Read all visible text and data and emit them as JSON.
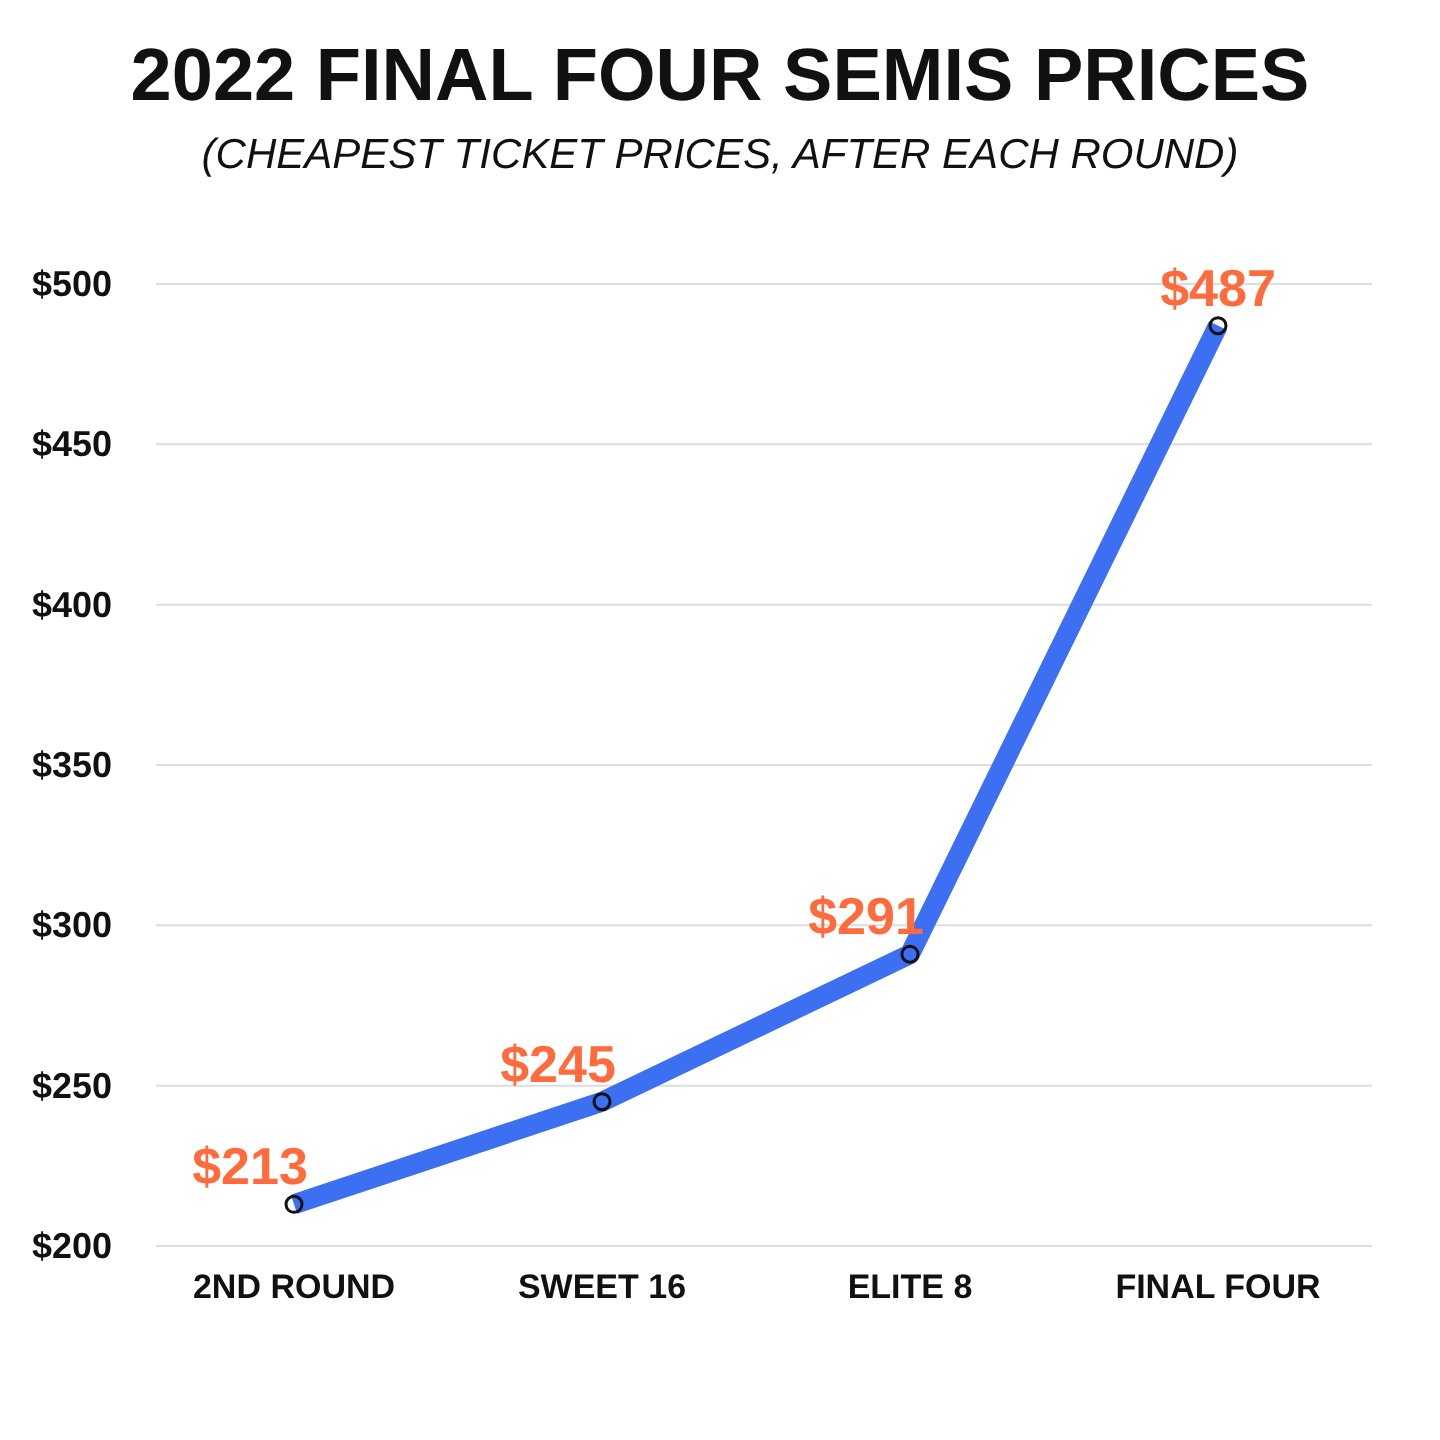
{
  "chart_data": {
    "type": "line",
    "title": "2022 FINAL FOUR SEMIS PRICES",
    "subtitle": "(CHEAPEST TICKET PRICES, AFTER EACH ROUND)",
    "categories": [
      "2ND ROUND",
      "SWEET 16",
      "ELITE 8",
      "FINAL FOUR"
    ],
    "series": [
      {
        "color": "#3d6ff2",
        "values": [
          213,
          245,
          291,
          487
        ],
        "value_labels": [
          "$213",
          "$245",
          "$291",
          "$487"
        ]
      }
    ],
    "ylim": [
      200,
      500
    ],
    "yticks": [
      {
        "value": 200,
        "label": "$200"
      },
      {
        "value": 250,
        "label": "$250"
      },
      {
        "value": 300,
        "label": "$300"
      },
      {
        "value": 350,
        "label": "$350"
      },
      {
        "value": 400,
        "label": "$400"
      },
      {
        "value": 450,
        "label": "$450"
      },
      {
        "value": 500,
        "label": "$500"
      }
    ],
    "grid": "y",
    "marker": "circle",
    "line_style": "solid"
  }
}
